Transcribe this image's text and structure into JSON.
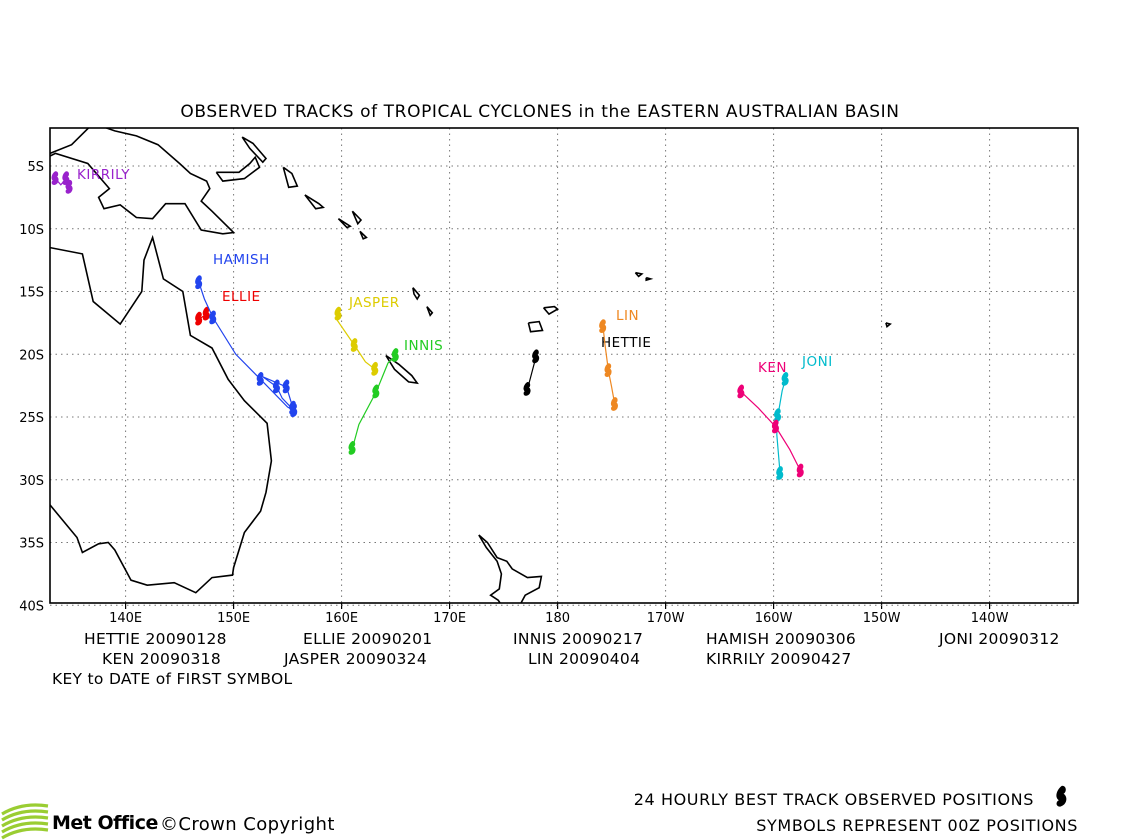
{
  "title": "OBSERVED TRACKS of TROPICAL CYCLONES in the EASTERN AUSTRALIAN BASIN",
  "axes": {
    "x_ticks": [
      "140E",
      "150E",
      "160E",
      "170E",
      "180",
      "170W",
      "160W",
      "150W",
      "140W"
    ],
    "y_ticks": [
      "5S",
      "10S",
      "15S",
      "20S",
      "25S",
      "30S",
      "35S",
      "40S"
    ]
  },
  "storms": [
    {
      "name": "HETTIE",
      "date": "20090128",
      "color": "#000000",
      "track": [
        [
          177.2,
          -22.8
        ],
        [
          177.6,
          -21.5
        ],
        [
          178.0,
          -20.2
        ]
      ]
    },
    {
      "name": "ELLIE",
      "date": "20090201",
      "color": "#ee0000",
      "track": [
        [
          146.8,
          -17.2
        ],
        [
          147.5,
          -16.8
        ]
      ]
    },
    {
      "name": "INNIS",
      "date": "20090217",
      "color": "#22cc22",
      "track": [
        [
          165.0,
          -20.1
        ],
        [
          164.3,
          -20.7
        ],
        [
          163.2,
          -23.0
        ],
        [
          161.6,
          -25.6
        ],
        [
          161.0,
          -27.5
        ]
      ]
    },
    {
      "name": "HAMISH",
      "date": "20090306",
      "color": "#2244ee",
      "track": [
        [
          146.8,
          -14.3
        ],
        [
          147.3,
          -15.6
        ],
        [
          148.1,
          -17.1
        ],
        [
          150.2,
          -20.0
        ],
        [
          152.5,
          -22.0
        ],
        [
          155.0,
          -24.2
        ],
        [
          155.6,
          -24.5
        ],
        [
          154.5,
          -23.5
        ],
        [
          154.0,
          -22.6
        ],
        [
          152.7,
          -21.8
        ],
        [
          154.9,
          -22.6
        ],
        [
          155.5,
          -24.3
        ]
      ]
    },
    {
      "name": "JONI",
      "date": "20090312",
      "color": "#00bbcc",
      "track": [
        [
          -158.9,
          -22.0
        ],
        [
          -159.2,
          -22.9
        ],
        [
          -159.6,
          -24.9
        ],
        [
          -159.7,
          -26.4
        ],
        [
          -159.4,
          -29.5
        ]
      ]
    },
    {
      "name": "KEN",
      "date": "20090318",
      "color": "#ee0077",
      "track": [
        [
          -163.0,
          -23.0
        ],
        [
          -161.4,
          -24.3
        ],
        [
          -159.8,
          -25.8
        ],
        [
          -158.5,
          -27.6
        ],
        [
          -157.5,
          -29.3
        ]
      ]
    },
    {
      "name": "JASPER",
      "date": "20090324",
      "color": "#ddcc00",
      "track": [
        [
          159.7,
          -16.8
        ],
        [
          159.6,
          -17.3
        ],
        [
          161.2,
          -19.3
        ],
        [
          162.2,
          -20.6
        ],
        [
          163.1,
          -21.2
        ]
      ]
    },
    {
      "name": "LIN",
      "date": "20090404",
      "color": "#ee8822",
      "track": [
        [
          -175.8,
          -17.8
        ],
        [
          -175.6,
          -19.3
        ],
        [
          -175.3,
          -21.3
        ],
        [
          -175.0,
          -22.6
        ],
        [
          -174.7,
          -24.0
        ]
      ]
    },
    {
      "name": "KIRRILY",
      "date": "20090427",
      "color": "#9922cc",
      "track": [
        [
          133.5,
          -6.0
        ],
        [
          134.0,
          -6.5
        ],
        [
          134.5,
          -6.0
        ],
        [
          134.8,
          -6.7
        ]
      ]
    }
  ],
  "key_text": "KEY to DATE of FIRST SYMBOL",
  "footer": {
    "line1": "24 HOURLY BEST TRACK OBSERVED POSITIONS",
    "line2": "SYMBOLS REPRESENT 00Z POSITIONS",
    "logo": "Met Office",
    "copyright": "©Crown Copyright"
  }
}
